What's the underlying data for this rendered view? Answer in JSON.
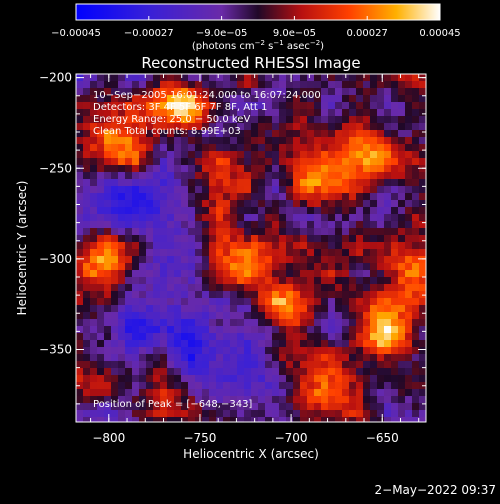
{
  "chart_data": {
    "type": "heatmap",
    "title": "Reconstructed RHESSI Image",
    "xlabel": "Heliocentric X (arcsec)",
    "ylabel": "Heliocentric Y (arcsec)",
    "xlim": [
      -818,
      -626
    ],
    "ylim": [
      -390,
      -198
    ],
    "x_ticks": [
      {
        "value": -800,
        "label": "−800"
      },
      {
        "value": -750,
        "label": "−750"
      },
      {
        "value": -700,
        "label": "−700"
      },
      {
        "value": -650,
        "label": "−650"
      }
    ],
    "y_ticks": [
      {
        "value": -200,
        "label": "−200"
      },
      {
        "value": -250,
        "label": "−250"
      },
      {
        "value": -300,
        "label": "−300"
      },
      {
        "value": -350,
        "label": "−350"
      }
    ],
    "colorbar": {
      "min": -0.00045,
      "max": 0.00045,
      "unit_prefix": "(photons cm",
      "unit_exp1": "−2",
      "unit_mid": " s",
      "unit_exp2": "−1",
      "unit_mid2": " asec",
      "unit_exp3": "−2",
      "unit_suffix": ")",
      "ticks": [
        {
          "value": -0.00045,
          "label": "−0.00045"
        },
        {
          "value": -0.00027,
          "label": "−0.00027"
        },
        {
          "value": -9e-05,
          "label": "−9.0e−05"
        },
        {
          "value": 9e-05,
          "label": "9.0e−05"
        },
        {
          "value": 0.00027,
          "label": "0.00027"
        },
        {
          "value": 0.00045,
          "label": "0.00045"
        }
      ]
    },
    "info_lines": [
      "10−Sep−2005 16:01:24.000 to 16:07:24.000",
      "Detectors: 3F 4F 5F 6F 7F 8F, Att 1",
      "Energy Range: 25.0 − 50.0 keV",
      "Clean     Total counts: 8.99E+03"
    ],
    "peak_label": "Position of Peak = [−648,−343]",
    "grid": false,
    "bright_regions": [
      {
        "x": -660,
        "y": -240,
        "value": 0.00042
      },
      {
        "x": -680,
        "y": -255,
        "value": 0.00038
      },
      {
        "x": -648,
        "y": -343,
        "value": 0.00045
      },
      {
        "x": -760,
        "y": -215,
        "value": 0.00033
      },
      {
        "x": -805,
        "y": -300,
        "value": 0.0003
      },
      {
        "x": -795,
        "y": -240,
        "value": 0.00028
      },
      {
        "x": -720,
        "y": -300,
        "value": 0.00025
      },
      {
        "x": -700,
        "y": -330,
        "value": 0.0003
      },
      {
        "x": -680,
        "y": -375,
        "value": 0.00035
      },
      {
        "x": -640,
        "y": -300,
        "value": 0.00032
      },
      {
        "x": -740,
        "y": -260,
        "value": 0.00018
      },
      {
        "x": -770,
        "y": -375,
        "value": 0.00015
      }
    ],
    "dim_regions": [
      {
        "x": -790,
        "y": -330,
        "value": -0.0002
      },
      {
        "x": -760,
        "y": -345,
        "value": -0.00025
      },
      {
        "x": -790,
        "y": -265,
        "value": -0.00018
      },
      {
        "x": -720,
        "y": -360,
        "value": -0.00015
      }
    ]
  },
  "footer": {
    "timestamp": "2−May−2022 09:37"
  }
}
